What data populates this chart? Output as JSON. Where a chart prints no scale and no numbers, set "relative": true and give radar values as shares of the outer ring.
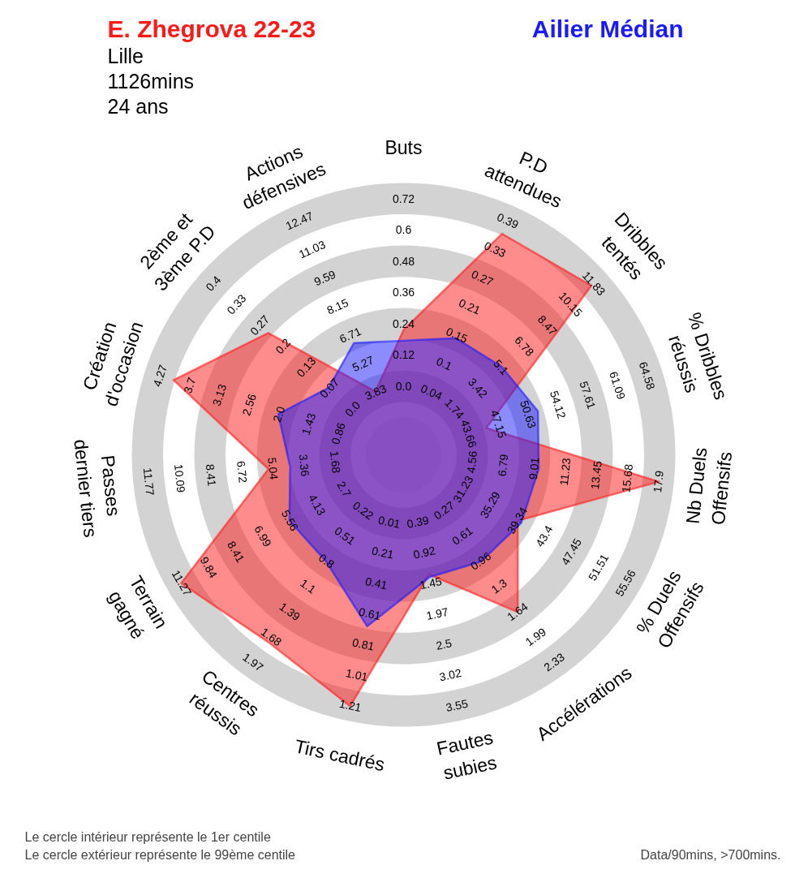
{
  "chart_data": {
    "type": "radar",
    "relative": true,
    "grid": true,
    "subtitle": "Lille\n1126mins\n24 ans",
    "categories": [
      "Buts",
      "P.D\nattendues",
      "Dribbles\ntentés",
      "% Dribbles\nréussis",
      "Nb Duels\nOffensifs",
      "% Duels\nOffensifs",
      "Accélérations",
      "Fautes\nsubies",
      "Tirs cadrés",
      "Centres\nréussis",
      "Terrain\ngagné",
      "Passes\ndernier tiers",
      "Création\nd'occasion",
      "2ème et\n3ème P.D",
      "Actions\ndéfensives"
    ],
    "series": [
      {
        "name": "E. Zhegrova 22-23",
        "color": "#ff1a1a",
        "values": [
          0.46,
          0.89,
          0.93,
          0.32,
          0.945,
          0.485,
          0.715,
          0.45,
          0.945,
          0.85,
          0.945,
          0.5,
          0.89,
          0.67,
          0.255
        ]
      },
      {
        "name": "Ailier Médian",
        "color": "#1a1aff",
        "values": [
          0.42,
          0.47,
          0.485,
          0.52,
          0.5,
          0.5,
          0.485,
          0.46,
          0.645,
          0.485,
          0.485,
          0.42,
          0.485,
          0.37,
          0.45
        ]
      }
    ],
    "annotations": [
      "Le cercle intérieur représente le 1er centile",
      "Le cercle extérieur représente le 99ème centile",
      "Data/90mins, >700mins.",
      {
        "text": "0.0",
        "x": "Buts"
      },
      {
        "text": "0.12",
        "x": "Buts"
      },
      {
        "text": "0.24",
        "x": "Buts"
      },
      {
        "text": "0.36",
        "x": "Buts"
      },
      {
        "text": "0.48",
        "x": "Buts"
      },
      {
        "text": "0.6",
        "x": "Buts"
      },
      {
        "text": "0.72",
        "x": "Buts"
      },
      {
        "text": "0.04",
        "x": "P.D\nattendues"
      },
      {
        "text": "0.1",
        "x": "P.D\nattendues"
      },
      {
        "text": "0.15",
        "x": "P.D\nattendues"
      },
      {
        "text": "0.21",
        "x": "P.D\nattendues"
      },
      {
        "text": "0.27",
        "x": "P.D\nattendues"
      },
      {
        "text": "0.33",
        "x": "P.D\nattendues"
      },
      {
        "text": "0.39",
        "x": "P.D\nattendues"
      },
      {
        "text": "1.74",
        "x": "Dribbles\ntentés"
      },
      {
        "text": "3.42",
        "x": "Dribbles\ntentés"
      },
      {
        "text": "5.1",
        "x": "Dribbles\ntentés"
      },
      {
        "text": "6.78",
        "x": "Dribbles\ntentés"
      },
      {
        "text": "8.47",
        "x": "Dribbles\ntentés"
      },
      {
        "text": "10.15",
        "x": "Dribbles\ntentés"
      },
      {
        "text": "11.83",
        "x": "Dribbles\ntentés"
      },
      {
        "text": "43.66",
        "x": "% Dribbles\nréussis"
      },
      {
        "text": "47.15",
        "x": "% Dribbles\nréussis"
      },
      {
        "text": "50.63",
        "x": "% Dribbles\nréussis"
      },
      {
        "text": "54.12",
        "x": "% Dribbles\nréussis"
      },
      {
        "text": "57.61",
        "x": "% Dribbles\nréussis"
      },
      {
        "text": "61.09",
        "x": "% Dribbles\nréussis"
      },
      {
        "text": "64.58",
        "x": "% Dribbles\nréussis"
      },
      {
        "text": "4.56",
        "x": "Nb Duels\nOffensifs"
      },
      {
        "text": "6.79",
        "x": "Nb Duels\nOffensifs"
      },
      {
        "text": "9.01",
        "x": "Nb Duels\nOffensifs"
      },
      {
        "text": "11.23",
        "x": "Nb Duels\nOffensifs"
      },
      {
        "text": "13.45",
        "x": "Nb Duels\nOffensifs"
      },
      {
        "text": "15.68",
        "x": "Nb Duels\nOffensifs"
      },
      {
        "text": "17.9",
        "x": "Nb Duels\nOffensifs"
      },
      {
        "text": "31.23",
        "x": "% Duels\nOffensifs"
      },
      {
        "text": "35.29",
        "x": "% Duels\nOffensifs"
      },
      {
        "text": "39.34",
        "x": "% Duels\nOffensifs"
      },
      {
        "text": "43.4",
        "x": "% Duels\nOffensifs"
      },
      {
        "text": "47.45",
        "x": "% Duels\nOffensifs"
      },
      {
        "text": "51.51",
        "x": "% Duels\nOffensifs"
      },
      {
        "text": "55.56",
        "x": "% Duels\nOffensifs"
      },
      {
        "text": "0.27",
        "x": "Accélérations"
      },
      {
        "text": "0.61",
        "x": "Accélérations"
      },
      {
        "text": "0.96",
        "x": "Accélérations"
      },
      {
        "text": "1.3",
        "x": "Accélérations"
      },
      {
        "text": "1.64",
        "x": "Accélérations"
      },
      {
        "text": "1.99",
        "x": "Accélérations"
      },
      {
        "text": "2.33",
        "x": "Accélérations"
      },
      {
        "text": "0.39",
        "x": "Fautes\nsubies"
      },
      {
        "text": "0.92",
        "x": "Fautes\nsubies"
      },
      {
        "text": "1.45",
        "x": "Fautes\nsubies"
      },
      {
        "text": "1.97",
        "x": "Fautes\nsubies"
      },
      {
        "text": "2.5",
        "x": "Fautes\nsubies"
      },
      {
        "text": "3.02",
        "x": "Fautes\nsubies"
      },
      {
        "text": "3.55",
        "x": "Fautes\nsubies"
      },
      {
        "text": "0.01",
        "x": "Tirs cadrés"
      },
      {
        "text": "0.21",
        "x": "Tirs cadrés"
      },
      {
        "text": "0.41",
        "x": "Tirs cadrés"
      },
      {
        "text": "0.61",
        "x": "Tirs cadrés"
      },
      {
        "text": "0.81",
        "x": "Tirs cadrés"
      },
      {
        "text": "1.01",
        "x": "Tirs cadrés"
      },
      {
        "text": "1.21",
        "x": "Tirs cadrés"
      },
      {
        "text": "0.22",
        "x": "Centres\nréussis"
      },
      {
        "text": "0.51",
        "x": "Centres\nréussis"
      },
      {
        "text": "0.8",
        "x": "Centres\nréussis"
      },
      {
        "text": "1.1",
        "x": "Centres\nréussis"
      },
      {
        "text": "1.39",
        "x": "Centres\nréussis"
      },
      {
        "text": "1.68",
        "x": "Centres\nréussis"
      },
      {
        "text": "1.97",
        "x": "Centres\nréussis"
      },
      {
        "text": "2.7",
        "x": "Terrain\ngagné"
      },
      {
        "text": "4.13",
        "x": "Terrain\ngagné"
      },
      {
        "text": "5.56",
        "x": "Terrain\ngagné"
      },
      {
        "text": "6.99",
        "x": "Terrain\ngagné"
      },
      {
        "text": "8.41",
        "x": "Terrain\ngagné"
      },
      {
        "text": "9.84",
        "x": "Terrain\ngagné"
      },
      {
        "text": "11.27",
        "x": "Terrain\ngagné"
      },
      {
        "text": "1.68",
        "x": "Passes\ndernier tiers"
      },
      {
        "text": "3.36",
        "x": "Passes\ndernier tiers"
      },
      {
        "text": "5.04",
        "x": "Passes\ndernier tiers"
      },
      {
        "text": "6.72",
        "x": "Passes\ndernier tiers"
      },
      {
        "text": "8.41",
        "x": "Passes\ndernier tiers"
      },
      {
        "text": "10.09",
        "x": "Passes\ndernier tiers"
      },
      {
        "text": "11.77",
        "x": "Passes\ndernier tiers"
      },
      {
        "text": "0.86",
        "x": "Création\nd'occasion"
      },
      {
        "text": "1.43",
        "x": "Création\nd'occasion"
      },
      {
        "text": "2.0",
        "x": "Création\nd'occasion"
      },
      {
        "text": "2.56",
        "x": "Création\nd'occasion"
      },
      {
        "text": "3.13",
        "x": "Création\nd'occasion"
      },
      {
        "text": "3.7",
        "x": "Création\nd'occasion"
      },
      {
        "text": "4.27",
        "x": "Création\nd'occasion"
      },
      {
        "text": "0.0",
        "x": "2ème et\n3ème P.D"
      },
      {
        "text": "0.07",
        "x": "2ème et\n3ème P.D"
      },
      {
        "text": "0.13",
        "x": "2ème et\n3ème P.D"
      },
      {
        "text": "0.2",
        "x": "2ème et\n3ème P.D"
      },
      {
        "text": "0.27",
        "x": "2ème et\n3ème P.D"
      },
      {
        "text": "0.33",
        "x": "2ème et\n3ème P.D"
      },
      {
        "text": "0.4",
        "x": "2ème et\n3ème P.D"
      },
      {
        "text": "3.83",
        "x": "Actions\ndéfensives"
      },
      {
        "text": "5.27",
        "x": "Actions\ndéfensives"
      },
      {
        "text": "6.71",
        "x": "Actions\ndéfensives"
      },
      {
        "text": "8.15",
        "x": "Actions\ndéfensives"
      },
      {
        "text": "9.59",
        "x": "Actions\ndéfensives"
      },
      {
        "text": "11.03",
        "x": "Actions\ndéfensives"
      },
      {
        "text": "12.47",
        "x": "Actions\ndéfensives"
      }
    ]
  }
}
